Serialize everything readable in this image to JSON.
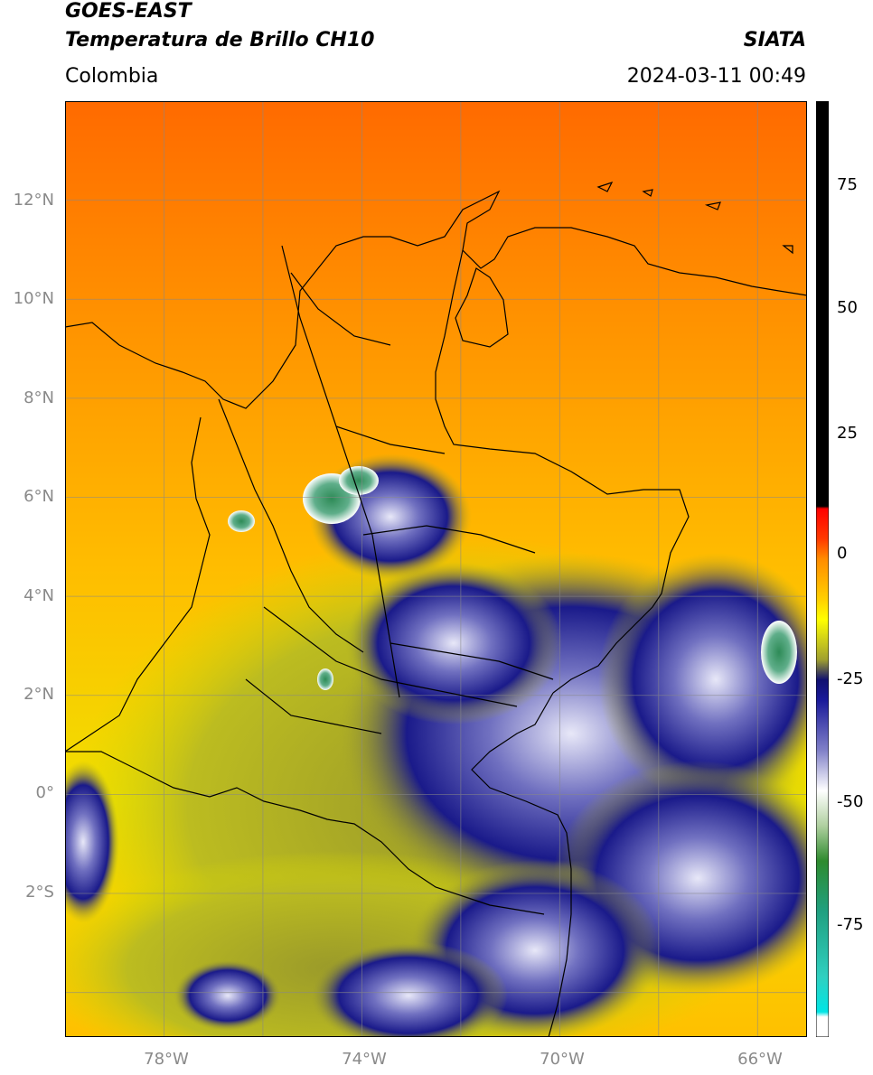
{
  "header": {
    "title_line1": "GOES-EAST",
    "title_line2": "Temperatura de Brillo CH10",
    "organization": "SIATA",
    "region": "Colombia",
    "timestamp": "2024-03-11 00:49"
  },
  "map": {
    "lat_labels": [
      "12°N",
      "10°N",
      "8°N",
      "6°N",
      "4°N",
      "2°N",
      "0°",
      "2°S"
    ],
    "lon_labels": [
      "78°W",
      "74°W",
      "70°W",
      "66°W"
    ],
    "lat_range": [
      -4.9,
      14.0
    ],
    "lon_range": [
      -80.0,
      -65.0
    ],
    "gridlines": true
  },
  "colorbar": {
    "ticks": [
      "75",
      "50",
      "25",
      "0",
      "-25",
      "-50",
      "-75"
    ],
    "range": [
      -97,
      89
    ],
    "stops": [
      {
        "value": 89,
        "color": "#000000"
      },
      {
        "value": 8.5,
        "color": "#000000"
      },
      {
        "value": 8,
        "color": "#ff0000"
      },
      {
        "value": 2,
        "color": "#ff3a00"
      },
      {
        "value": -2,
        "color": "#ff8c00"
      },
      {
        "value": -10,
        "color": "#ffd000"
      },
      {
        "value": -14,
        "color": "#ffff00"
      },
      {
        "value": -22,
        "color": "#a0a030"
      },
      {
        "value": -26,
        "color": "#101070"
      },
      {
        "value": -30,
        "color": "#1a1a9a"
      },
      {
        "value": -40,
        "color": "#8080c8"
      },
      {
        "value": -48,
        "color": "#ffffff"
      },
      {
        "value": -55,
        "color": "#b0d0a0"
      },
      {
        "value": -62,
        "color": "#2e8b2e"
      },
      {
        "value": -72,
        "color": "#20a080"
      },
      {
        "value": -85,
        "color": "#30d0c0"
      },
      {
        "value": -92,
        "color": "#00e5e5"
      },
      {
        "value": -93,
        "color": "#ffffff"
      },
      {
        "value": -97,
        "color": "#ffffff"
      }
    ]
  }
}
